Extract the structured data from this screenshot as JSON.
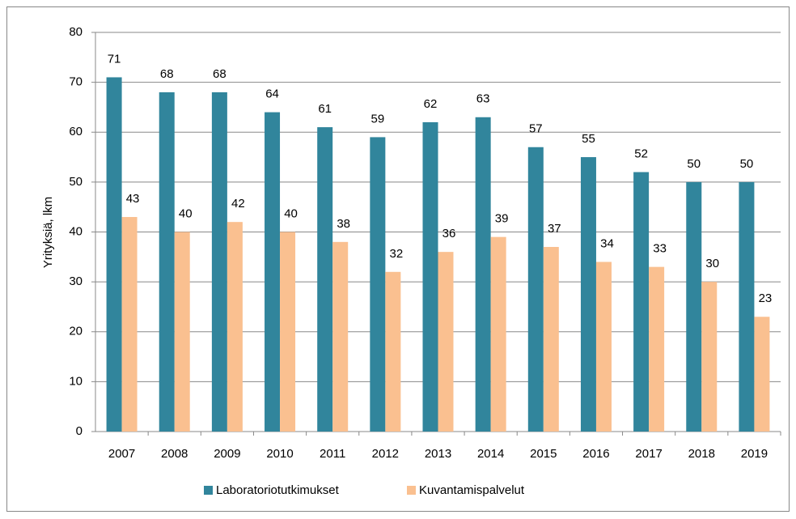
{
  "chart_data": {
    "type": "bar",
    "categories": [
      "2007",
      "2008",
      "2009",
      "2010",
      "2011",
      "2012",
      "2013",
      "2014",
      "2015",
      "2016",
      "2017",
      "2018",
      "2019"
    ],
    "series": [
      {
        "name": "Laboratoriotutkimukset",
        "color": "#31859c",
        "values": [
          71,
          68,
          68,
          64,
          61,
          59,
          62,
          63,
          57,
          55,
          52,
          50,
          50
        ]
      },
      {
        "name": "Kuvantamispalvelut",
        "color": "#fac090",
        "values": [
          43,
          40,
          42,
          40,
          38,
          32,
          36,
          39,
          37,
          34,
          33,
          30,
          23
        ]
      }
    ],
    "y_label": "Yrityksiä, lkm",
    "ylim": [
      0,
      80
    ],
    "yticks": [
      0,
      10,
      20,
      30,
      40,
      50,
      60,
      70,
      80
    ],
    "grid": true,
    "legend": "bottom"
  }
}
